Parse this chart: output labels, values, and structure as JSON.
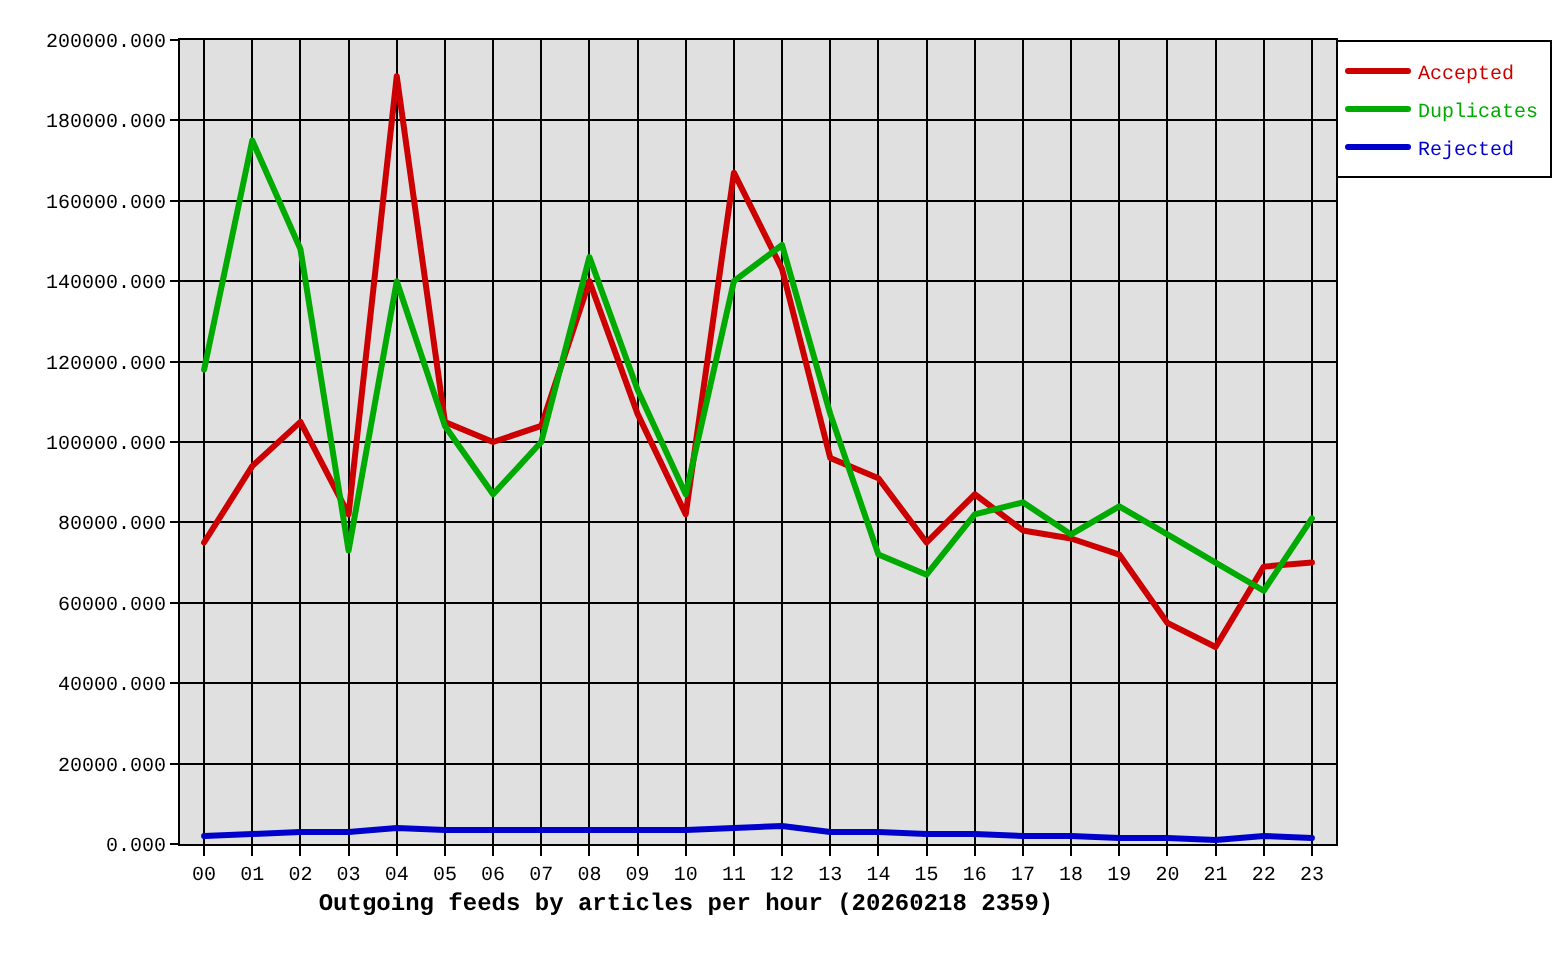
{
  "chart_data": {
    "type": "line",
    "title": "Outgoing feeds by articles per hour (20260218 2359)",
    "categories": [
      "00",
      "01",
      "02",
      "03",
      "04",
      "05",
      "06",
      "07",
      "08",
      "09",
      "10",
      "11",
      "12",
      "13",
      "14",
      "15",
      "16",
      "17",
      "18",
      "19",
      "20",
      "21",
      "22",
      "23"
    ],
    "series": [
      {
        "name": "Accepted",
        "color": "#cc0000",
        "values": [
          75000,
          94000,
          105000,
          82000,
          191000,
          105000,
          100000,
          104000,
          140000,
          107000,
          82000,
          167000,
          143000,
          96000,
          91000,
          75000,
          87000,
          78000,
          76000,
          72000,
          55000,
          49000,
          69000,
          70000
        ]
      },
      {
        "name": "Duplicates",
        "color": "#00aa00",
        "values": [
          118000,
          175000,
          148000,
          73000,
          140000,
          104000,
          87000,
          100000,
          146000,
          113000,
          87000,
          140000,
          149000,
          107000,
          72000,
          67000,
          82000,
          85000,
          77000,
          84000,
          77000,
          70000,
          63000,
          81000
        ]
      },
      {
        "name": "Rejected",
        "color": "#0000cc",
        "values": [
          2000,
          2500,
          3000,
          3000,
          4000,
          3500,
          3500,
          3500,
          3500,
          3500,
          3500,
          4000,
          4500,
          3000,
          3000,
          2500,
          2500,
          2000,
          2000,
          1500,
          1500,
          1000,
          2000,
          1500
        ]
      }
    ],
    "ylim": [
      0,
      200000
    ],
    "yticks": [
      {
        "value": 0,
        "label": "0.000"
      },
      {
        "value": 20000,
        "label": "20000.000"
      },
      {
        "value": 40000,
        "label": "40000.000"
      },
      {
        "value": 60000,
        "label": "60000.000"
      },
      {
        "value": 80000,
        "label": "80000.000"
      },
      {
        "value": 100000,
        "label": "100000.000"
      },
      {
        "value": 120000,
        "label": "120000.000"
      },
      {
        "value": 140000,
        "label": "140000.000"
      },
      {
        "value": 160000,
        "label": "160000.000"
      },
      {
        "value": 180000,
        "label": "180000.000"
      },
      {
        "value": 200000,
        "label": "200000.000"
      }
    ],
    "grid": true,
    "legend": "top right",
    "line_style": "solid"
  }
}
